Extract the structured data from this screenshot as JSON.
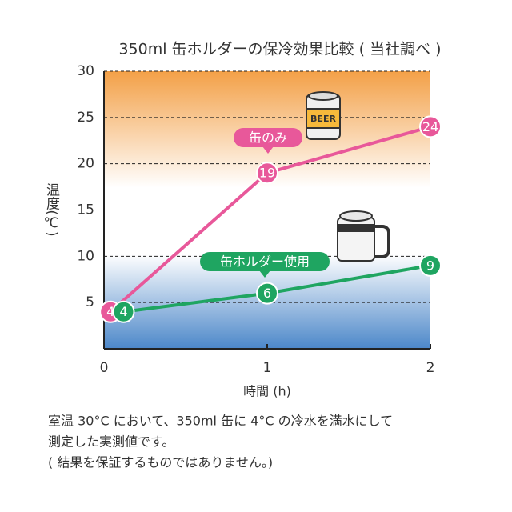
{
  "chart_data": {
    "type": "line",
    "title": "350ml 缶ホルダーの保冷効果比較 ( 当社調べ )",
    "y_label": "温度(℃)",
    "x_label": "時間 (h)",
    "xlim": [
      0,
      2
    ],
    "xticks": [
      0,
      1,
      2
    ],
    "ylim": [
      0,
      30
    ],
    "yticks": [
      5,
      10,
      15,
      20,
      25,
      30
    ],
    "grid": true,
    "series": [
      {
        "name": "缶のみ",
        "color": "#e8589a",
        "x": [
          0.04,
          1,
          2
        ],
        "values": [
          4,
          19,
          24
        ]
      },
      {
        "name": "缶ホルダー使用",
        "color": "#1fa561",
        "x": [
          0.12,
          1,
          2
        ],
        "values": [
          4,
          6,
          9
        ]
      }
    ],
    "can_label": "BEER",
    "note": [
      "室温 30°C において、350ml 缶に 4°C の冷水を満水にして",
      "測定した実測値です。",
      "( 結果を保証するものではありません。)"
    ]
  }
}
